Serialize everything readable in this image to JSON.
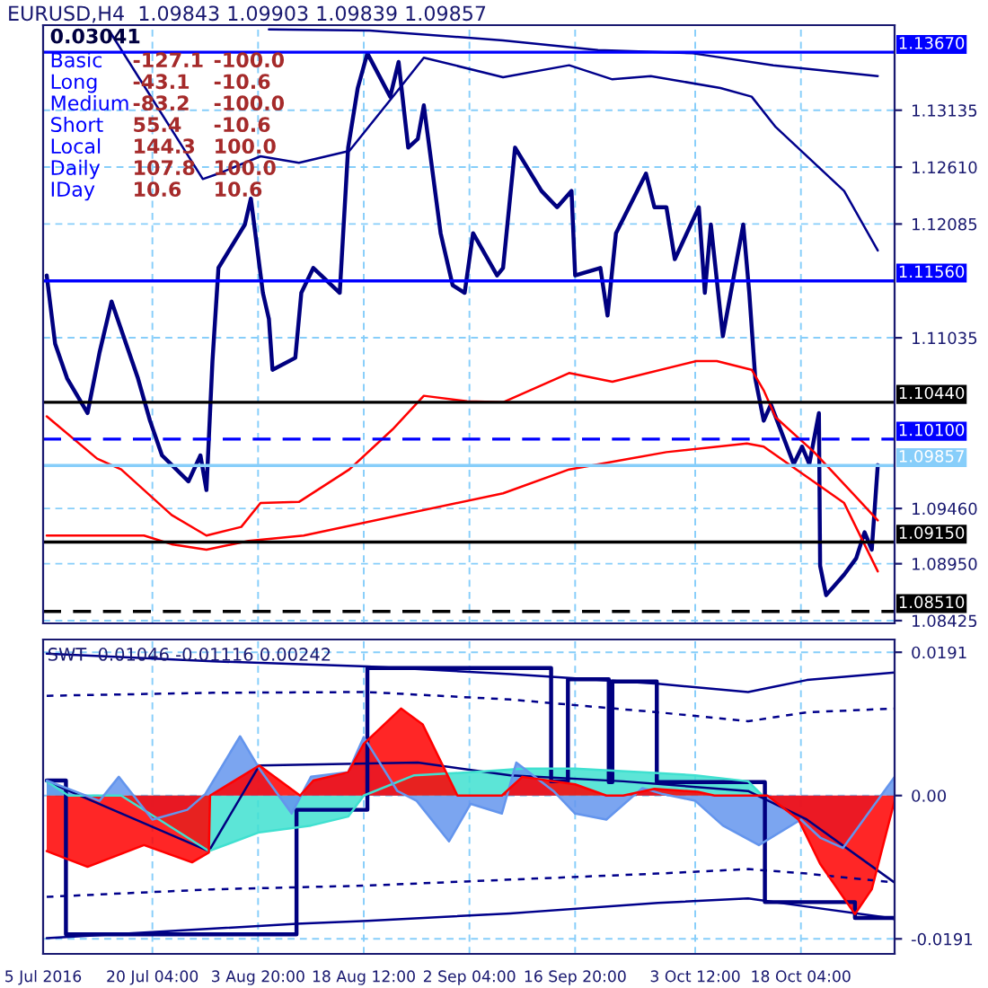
{
  "chart_data": [
    {
      "type": "line",
      "title": "EURUSD,H4  1.09843 1.09903 1.09839 1.09857",
      "xlim": [
        "2016-07-05",
        "2016-10-31T04:00"
      ],
      "xticks": [
        {
          "value": "2016-07-05",
          "label": null
        },
        {
          "value": "2016-07-20T04:00",
          "label": null
        },
        {
          "value": "2016-08-03T20:00",
          "label": null
        },
        {
          "value": "2016-08-18T12:00",
          "label": null
        },
        {
          "value": "2016-09-02T04:00",
          "label": null
        },
        {
          "value": "2016-09-16T20:00",
          "label": null
        },
        {
          "value": "2016-10-03T12:00",
          "label": null
        },
        {
          "value": "2016-10-18T04:00",
          "label": null
        }
      ],
      "tick_labels": "y",
      "ylim": [
        1.084,
        1.1392
      ],
      "yticks": [
        {
          "value": 1.13135,
          "label": "1.13135"
        },
        {
          "value": 1.1261,
          "label": "1.12610"
        },
        {
          "value": 1.12085,
          "label": "1.12085"
        },
        {
          "value": 1.11035,
          "label": "1.11035"
        },
        {
          "value": 1.0946,
          "label": "1.09460"
        },
        {
          "value": 1.0895,
          "label": "1.08950"
        },
        {
          "value": 1.08425,
          "label": "1.08425"
        }
      ],
      "grid": true,
      "series": [
        {
          "color": "#000080",
          "x": [
            "2016-07-05T12:00",
            "2016-07-06T16:00",
            "2016-07-08T08:00",
            "2016-07-11T04:00",
            "2016-07-12T20:00",
            "2016-07-14T12:00",
            "2016-07-18T04:00",
            "2016-07-19T20:00",
            "2016-07-21T12:00",
            "2016-07-25T04:00",
            "2016-07-26T20:00",
            "2016-07-27T16:00",
            "2016-07-28T12:00",
            "2016-07-29T08:00",
            "2016-08-02T00:00",
            "2016-08-02T20:00",
            "2016-08-04T12:00",
            "2016-08-05T08:00",
            "2016-08-05T20:00",
            "2016-08-09T00:00",
            "2016-08-09T20:00",
            "2016-08-11T12:00",
            "2016-08-15T04:00",
            "2016-08-16T08:00",
            "2016-08-17T16:00",
            "2016-08-19T00:00",
            "2016-08-22T04:00",
            "2016-08-23T08:00",
            "2016-08-24T16:00",
            "2016-08-26T00:00",
            "2016-08-26T20:00",
            "2016-08-29T04:00",
            "2016-08-30T20:00",
            "2016-09-01T12:00",
            "2016-09-02T16:00",
            "2016-09-06T00:00",
            "2016-09-06T20:00",
            "2016-09-08T12:00",
            "2016-09-12T04:00",
            "2016-09-14T08:00",
            "2016-09-16T08:00",
            "2016-09-16T20:00",
            "2016-09-20T08:00",
            "2016-09-21T08:00",
            "2016-09-22T12:00",
            "2016-09-26T16:00",
            "2016-09-27T20:00",
            "2016-09-29T12:00",
            "2016-09-30T16:00",
            "2016-10-04T00:00",
            "2016-10-04T20:00",
            "2016-10-05T16:00",
            "2016-10-07T08:00",
            "2016-10-10T04:00",
            "2016-10-11T00:00",
            "2016-10-11T20:00",
            "2016-10-13T00:00",
            "2016-10-14T00:00",
            "2016-10-17T04:00",
            "2016-10-18T08:00",
            "2016-10-19T08:00",
            "2016-10-20T16:00",
            "2016-10-20T20:00",
            "2016-10-21T16:00",
            "2016-10-24T04:00",
            "2016-10-25T20:00",
            "2016-10-27T00:00",
            "2016-10-28T00:00",
            "2016-10-28T20:00"
          ],
          "values": [
            1.1161,
            1.1098,
            1.1066,
            1.1034,
            1.109,
            1.1137,
            1.1066,
            1.1027,
            1.0995,
            1.0971,
            1.0995,
            1.0963,
            1.1082,
            1.1168,
            1.1208,
            1.1232,
            1.1145,
            1.1121,
            1.1074,
            1.1085,
            1.1145,
            1.1168,
            1.1145,
            1.1279,
            1.1334,
            1.1366,
            1.1326,
            1.1358,
            1.1279,
            1.1287,
            1.1318,
            1.12,
            1.1152,
            1.1145,
            1.12,
            1.1161,
            1.1168,
            1.1279,
            1.1239,
            1.1224,
            1.1239,
            1.1161,
            1.1168,
            1.1124,
            1.12,
            1.1255,
            1.1224,
            1.1224,
            1.1176,
            1.1224,
            1.1145,
            1.1208,
            1.1105,
            1.1208,
            1.1145,
            1.1066,
            1.1027,
            1.1042,
            1.0987,
            1.1003,
            1.0987,
            1.1034,
            1.0893,
            1.0866,
            1.0885,
            1.09,
            1.0924,
            1.0908,
            1.0986
          ]
        },
        {
          "color": "#00008b",
          "x": [
            "2016-08-05T08:00",
            "2016-08-19T08:00",
            "2016-09-06T20:00",
            "2016-09-20T00:00",
            "2016-10-03T04:00",
            "2016-10-14T08:00",
            "2016-10-28T20:00"
          ],
          "values": [
            1.1388,
            1.1387,
            1.1378,
            1.1369,
            1.1366,
            1.1355,
            1.1345
          ]
        },
        {
          "color": "#00008b",
          "x": [
            "2016-07-14T04:00",
            "2016-07-27T04:00",
            "2016-07-29T08:00",
            "2016-08-04T04:00",
            "2016-08-09T12:00",
            "2016-08-16T12:00",
            "2016-08-23T12:00",
            "2016-08-26T20:00",
            "2016-09-06T20:00",
            "2016-09-16T00:00",
            "2016-09-22T00:00",
            "2016-09-27T08:00",
            "2016-10-07T00:00",
            "2016-10-11T08:00",
            "2016-10-14T16:00",
            "2016-10-24T04:00",
            "2016-10-28T20:00"
          ],
          "values": [
            1.1387,
            1.125,
            1.1255,
            1.1271,
            1.1265,
            1.1276,
            1.1334,
            1.1362,
            1.1344,
            1.1355,
            1.1342,
            1.1345,
            1.1334,
            1.1326,
            1.1298,
            1.1239,
            1.1184
          ]
        },
        {
          "color": "#ff0000",
          "x": [
            "2016-07-05T12:00",
            "2016-07-12T12:00",
            "2016-07-15T20:00",
            "2016-07-22T20:00",
            "2016-07-27T16:00",
            "2016-08-01T12:00",
            "2016-08-04T04:00",
            "2016-08-09T12:00",
            "2016-08-16T12:00",
            "2016-08-22T12:00",
            "2016-08-26T20:00",
            "2016-09-01T20:00",
            "2016-09-06T20:00",
            "2016-09-16T00:00",
            "2016-09-22T00:00",
            "2016-10-03T16:00",
            "2016-10-06T12:00",
            "2016-10-11T08:00",
            "2016-10-13T00:00",
            "2016-10-14T16:00",
            "2016-10-20T00:00",
            "2016-10-25T08:00",
            "2016-10-28T20:00"
          ],
          "values": [
            1.1031,
            1.0992,
            1.0982,
            1.094,
            1.0921,
            1.0929,
            1.0951,
            1.0952,
            1.0982,
            1.1019,
            1.105,
            1.1045,
            1.1044,
            1.1071,
            1.1063,
            1.1082,
            1.1082,
            1.1074,
            1.1055,
            1.103,
            1.0998,
            1.096,
            1.0935
          ]
        },
        {
          "color": "#ff0000",
          "x": [
            "2016-07-05T12:00",
            "2016-07-19T00:00",
            "2016-07-22T20:00",
            "2016-07-27T16:00",
            "2016-08-02T12:00",
            "2016-08-10T04:00",
            "2016-09-06T20:00",
            "2016-09-16T00:00",
            "2016-09-29T12:00",
            "2016-10-10T16:00",
            "2016-10-13T00:00",
            "2016-10-18T20:00",
            "2016-10-24T04:00",
            "2016-10-28T20:00"
          ],
          "values": [
            1.0921,
            1.0921,
            1.0913,
            1.0908,
            1.0916,
            1.0921,
            1.096,
            1.0982,
            1.0998,
            1.1006,
            1.1003,
            1.0976,
            1.0951,
            1.0888
          ]
        }
      ],
      "ref_lines": [
        {
          "axis": "y",
          "value": 1.1367,
          "label": "1.13670",
          "color": "#0000ff",
          "line_style": "solid"
        },
        {
          "axis": "y",
          "value": 1.1156,
          "label": "1.11560",
          "color": "#0000ff",
          "line_style": "solid"
        },
        {
          "axis": "y",
          "value": 1.1044,
          "label": "1.10440",
          "color": "#000000",
          "line_style": "solid"
        },
        {
          "axis": "y",
          "value": 1.101,
          "label": "1.10100",
          "color": "#0000ff",
          "line_style": "dashed"
        },
        {
          "axis": "y",
          "value": 1.09857,
          "label": "1.09857",
          "color": "#87cefa",
          "line_style": "solid"
        },
        {
          "axis": "y",
          "value": 1.0915,
          "label": "1.09150",
          "color": "#000000",
          "line_style": "solid"
        },
        {
          "axis": "y",
          "value": 1.0851,
          "label": "1.08510",
          "color": "#000000",
          "line_style": "dashed"
        }
      ],
      "annotations": [
        "0.03041",
        "Basic",
        "-127.1",
        "-100.0",
        "Long",
        "-43.1",
        "-10.6",
        "Medium",
        "-83.2",
        "-100.0",
        "Short",
        "55.4",
        "-10.6",
        "Local",
        "144.3",
        "100.0",
        "Daily",
        "107.8",
        "100.0",
        "IDay",
        "10.6",
        "10.6"
      ]
    },
    {
      "type": "area",
      "title": "SWT  0.01046 -0.01116 0.00242",
      "xlim": [
        "2016-07-05",
        "2016-10-31T04:00"
      ],
      "xticks": [
        {
          "value": "2016-07-05",
          "label": "5 Jul 2016"
        },
        {
          "value": "2016-07-20T04:00",
          "label": "20 Jul 04:00"
        },
        {
          "value": "2016-08-03T20:00",
          "label": "3 Aug 20:00"
        },
        {
          "value": "2016-08-18T12:00",
          "label": "18 Aug 12:00"
        },
        {
          "value": "2016-09-02T04:00",
          "label": "2 Sep 04:00"
        },
        {
          "value": "2016-09-16T20:00",
          "label": "16 Sep 20:00"
        },
        {
          "value": "2016-10-03T12:00",
          "label": "3 Oct 12:00"
        },
        {
          "value": "2016-10-18T04:00",
          "label": "18 Oct 04:00"
        }
      ],
      "ylim": [
        -0.0211,
        0.0208
      ],
      "yticks": [
        {
          "value": 0.0191,
          "label": "0.0191"
        },
        {
          "value": 0,
          "label": "0.00"
        },
        {
          "value": -0.0191,
          "label": "-0.0191"
        }
      ],
      "grid": true,
      "series": [
        {
          "color": "#40e0d0",
          "x": [
            "2016-07-05T12:00",
            "2016-07-08T12:00",
            "2016-07-15T20:00",
            "2016-07-28T00:00",
            "2016-08-04T00:00",
            "2016-08-11T04:00",
            "2016-08-16T08:00",
            "2016-08-18T12:00",
            "2016-08-25T12:00",
            "2016-09-02T08:00",
            "2016-09-09T16:00",
            "2016-09-16T20:00",
            "2016-09-26T04:00",
            "2016-10-03T12:00",
            "2016-10-10T20:00",
            "2016-10-12T20:00"
          ],
          "values": [
            0.0019,
            0,
            0,
            -0.0074,
            -0.0049,
            -0.004,
            -0.0028,
            0,
            0.0027,
            0.0031,
            0.0036,
            0.0036,
            0.0031,
            0.0027,
            0.0019,
            0
          ]
        },
        {
          "color": "#6495ed",
          "x": [
            "2016-07-05T12:00",
            "2016-07-12T20:00",
            "2016-07-15T12:00",
            "2016-07-20T04:00",
            "2016-07-25T00:00",
            "2016-07-27T12:00",
            "2016-08-01T08:00",
            "2016-08-04T00:00",
            "2016-08-08T12:00",
            "2016-08-11T04:00",
            "2016-08-16T08:00",
            "2016-08-18T12:00",
            "2016-08-23T04:00",
            "2016-08-25T20:00",
            "2016-08-30T08:00",
            "2016-09-02T08:00",
            "2016-09-06T16:00",
            "2016-09-08T16:00",
            "2016-09-13T20:00",
            "2016-09-16T20:00",
            "2016-09-21T04:00",
            "2016-09-26T04:00",
            "2016-09-29T00:00",
            "2016-10-03T12:00",
            "2016-10-07T08:00",
            "2016-10-12T08:00",
            "2016-10-18T04:00",
            "2016-10-20T20:00",
            "2016-10-24T00:00",
            "2016-10-31T04:00"
          ],
          "values": [
            0.002,
            -0.0007,
            0.0025,
            -0.0032,
            -0.0019,
            0.0002,
            0.0079,
            0.0036,
            -0.0024,
            0.0025,
            0.0031,
            0.0078,
            0.0006,
            -0.0007,
            -0.0061,
            -0.0011,
            -0.0024,
            0.0044,
            0.0006,
            -0.0024,
            -0.0032,
            0.001,
            0.0002,
            -0.0007,
            -0.004,
            -0.0066,
            -0.0032,
            -0.0056,
            -0.007,
            0.0025
          ]
        },
        {
          "color": "#ff0000",
          "x": [
            "2016-07-05T12:00",
            "2016-07-11T04:00",
            "2016-07-19T00:00",
            "2016-07-25T16:00",
            "2016-07-28T00:00",
            "2016-07-28T04:00",
            "2016-08-04T00:00",
            "2016-08-09T16:00",
            "2016-08-11T12:00",
            "2016-08-16T08:00",
            "2016-08-18T12:00",
            "2016-08-23T16:00",
            "2016-08-26T16:00",
            "2016-08-31T12:00",
            "2016-09-06T16:00",
            "2016-09-09T12:00",
            "2016-09-16T20:00",
            "2016-09-21T04:00",
            "2016-09-23T12:00",
            "2016-09-27T20:00",
            "2016-10-03T20:00",
            "2016-10-06T04:00",
            "2016-10-13T12:00",
            "2016-10-17T20:00",
            "2016-10-20T20:00",
            "2016-10-25T16:00",
            "2016-10-28T00:00",
            "2016-10-31T04:00"
          ],
          "values": [
            -0.0074,
            -0.0095,
            -0.0066,
            -0.0089,
            -0.0076,
            0,
            0.004,
            0,
            0.002,
            0.0031,
            0.0069,
            0.0116,
            0.0095,
            0,
            0,
            0.0025,
            0.0015,
            0,
            0,
            0.0009,
            0.0005,
            0,
            0,
            -0.0032,
            -0.0091,
            -0.0158,
            -0.0125,
            -0.0007
          ]
        },
        {
          "type": "line",
          "color": "#000080",
          "x": [
            "2016-07-05T12:00",
            "2016-07-28T00:00",
            "2016-08-04T00:00",
            "2016-08-26T00:00",
            "2016-09-07T20:00",
            "2016-09-23T12:00",
            "2016-10-10T20:00",
            "2016-10-19T00:00",
            "2016-10-31T04:00"
          ],
          "values": [
            0.0019,
            -0.0074,
            0.004,
            0.0044,
            0.0027,
            0.0019,
            0.0006,
            -0.0032,
            -0.0116
          ]
        },
        {
          "type": "line",
          "color": "#00008b",
          "x": [
            "2016-07-05T12:00",
            "2016-07-28T12:00",
            "2016-08-19T00:00",
            "2016-09-07T20:00",
            "2016-09-28T08:00",
            "2016-10-10T20:00",
            "2016-10-19T00:00",
            "2016-10-31T04:00"
          ],
          "values": [
            0.0189,
            0.0179,
            0.0172,
            0.0162,
            0.0149,
            0.0138,
            0.0154,
            0.0164
          ]
        },
        {
          "type": "line",
          "color": "#00008b",
          "line_style": "dotted",
          "x": [
            "2016-07-05T12:00",
            "2016-07-28T12:00",
            "2016-08-19T00:00",
            "2016-09-07T20:00",
            "2016-09-28T08:00",
            "2016-10-10T20:00",
            "2016-10-19T00:00",
            "2016-10-31T04:00"
          ],
          "values": [
            0.0133,
            0.0137,
            0.0138,
            0.0128,
            0.0111,
            0.0099,
            0.0111,
            0.0116
          ]
        },
        {
          "type": "line",
          "color": "#00008b",
          "line_style": "dotted",
          "x": [
            "2016-07-05T12:00",
            "2016-07-28T12:00",
            "2016-08-19T00:00",
            "2016-09-07T20:00",
            "2016-09-28T08:00",
            "2016-10-10T20:00",
            "2016-10-19T00:00",
            "2016-10-31T04:00"
          ],
          "values": [
            -0.0135,
            -0.0125,
            -0.012,
            -0.0112,
            -0.0104,
            -0.0098,
            -0.0104,
            -0.0116
          ]
        },
        {
          "type": "line",
          "color": "#00008b",
          "x": [
            "2016-07-05T12:00",
            "2016-08-09T04:00",
            "2016-08-19T00:00",
            "2016-09-07T20:00",
            "2016-09-28T08:00",
            "2016-10-10T20:00",
            "2016-10-19T00:00",
            "2016-10-31T04:00"
          ],
          "values": [
            -0.019,
            -0.0171,
            -0.0167,
            -0.0157,
            -0.0143,
            -0.0137,
            -0.0148,
            -0.0164
          ]
        },
        {
          "type": "step",
          "color": "#000080",
          "x": [
            "2016-07-05T12:00",
            "2016-07-08T04:00",
            "2016-08-09T04:00",
            "2016-08-19T00:00",
            "2016-09-13T12:00",
            "2016-09-15T20:00",
            "2016-09-21T12:00",
            "2016-09-22T00:00",
            "2016-09-28T04:00",
            "2016-10-13T04:00",
            "2016-10-25T16:00",
            "2016-10-31T04:00"
          ],
          "values": [
            0.002,
            -0.0185,
            -0.0019,
            0.017,
            0.0019,
            0.0155,
            0.0018,
            0.0152,
            0.0018,
            -0.0142,
            -0.0163,
            -0.0164
          ]
        }
      ]
    }
  ]
}
